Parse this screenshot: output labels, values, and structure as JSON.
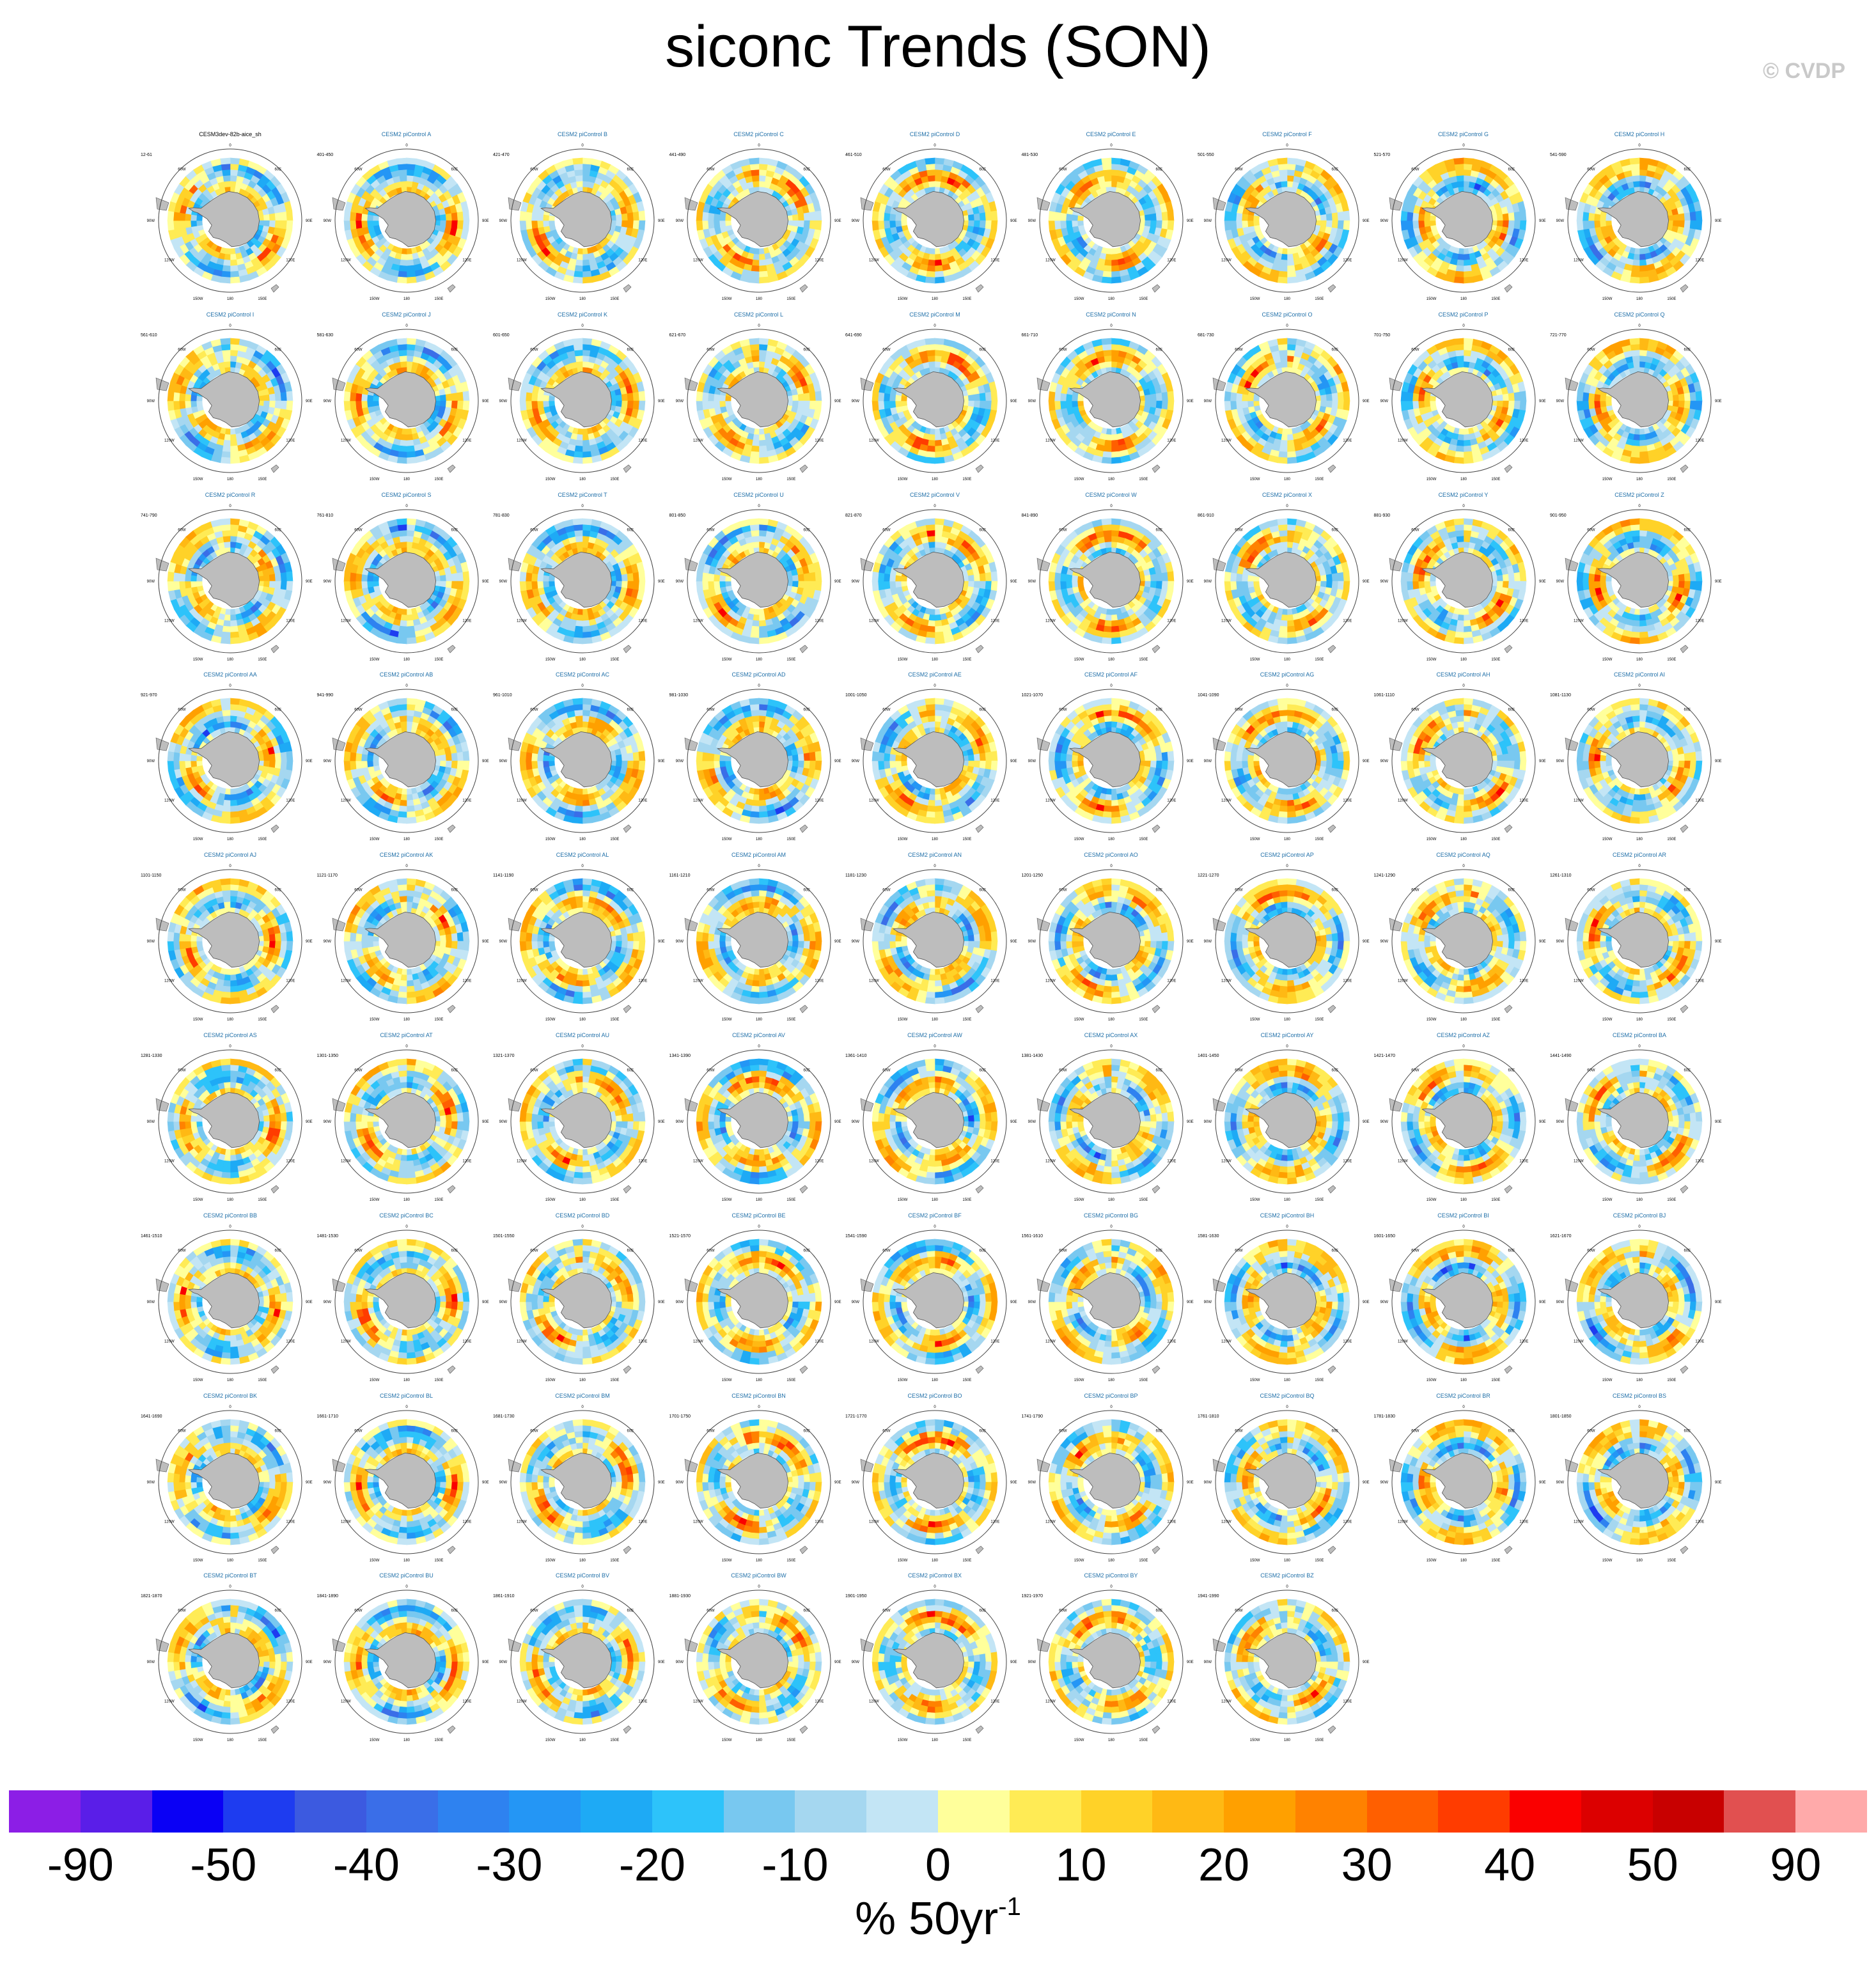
{
  "title": "siconc Trends (SON)",
  "watermark": "© CVDP",
  "units": {
    "base": "% 50yr",
    "exponent": "-1"
  },
  "colorbar": {
    "colors": [
      "#8c1ee6",
      "#5a1ee8",
      "#0a00f5",
      "#1e3cf0",
      "#3c5ae0",
      "#3a6ee8",
      "#2e82f0",
      "#2496f5",
      "#1eaaf5",
      "#2dc3fa",
      "#78c8f0",
      "#a5d7f0",
      "#c3e5f5",
      "#ffff9b",
      "#ffeb55",
      "#ffd228",
      "#ffb914",
      "#ffa000",
      "#ff8200",
      "#ff5f00",
      "#ff3c00",
      "#fa0000",
      "#dc0000",
      "#c80000",
      "#e15050",
      "#ffaaaa"
    ],
    "labels": [
      "-90",
      "-50",
      "-40",
      "-30",
      "-20",
      "-10",
      "0",
      "10",
      "20",
      "30",
      "40",
      "50",
      "90"
    ]
  },
  "map_labels": {
    "top": "0",
    "upper_left": "60W",
    "upper_right": "60E",
    "left": "90W",
    "right": "90E",
    "lower_left": "120W",
    "lower_right": "120E",
    "bottom_left": "150W",
    "bottom": "180",
    "bottom_right": "150E"
  },
  "panels": [
    {
      "title": "CESM3dev-82b-aice_sh",
      "years": "12-61"
    },
    {
      "title": "CESM2 piControl A",
      "years": "401-450"
    },
    {
      "title": "CESM2 piControl B",
      "years": "421-470"
    },
    {
      "title": "CESM2 piControl C",
      "years": "441-490"
    },
    {
      "title": "CESM2 piControl D",
      "years": "461-510"
    },
    {
      "title": "CESM2 piControl E",
      "years": "481-530"
    },
    {
      "title": "CESM2 piControl F",
      "years": "501-550"
    },
    {
      "title": "CESM2 piControl G",
      "years": "521-570"
    },
    {
      "title": "CESM2 piControl H",
      "years": "541-590"
    },
    {
      "title": "CESM2 piControl I",
      "years": "561-610"
    },
    {
      "title": "CESM2 piControl J",
      "years": "581-630"
    },
    {
      "title": "CESM2 piControl K",
      "years": "601-650"
    },
    {
      "title": "CESM2 piControl L",
      "years": "621-670"
    },
    {
      "title": "CESM2 piControl M",
      "years": "641-690"
    },
    {
      "title": "CESM2 piControl N",
      "years": "661-710"
    },
    {
      "title": "CESM2 piControl O",
      "years": "681-730"
    },
    {
      "title": "CESM2 piControl P",
      "years": "701-750"
    },
    {
      "title": "CESM2 piControl Q",
      "years": "721-770"
    },
    {
      "title": "CESM2 piControl R",
      "years": "741-790"
    },
    {
      "title": "CESM2 piControl S",
      "years": "761-810"
    },
    {
      "title": "CESM2 piControl T",
      "years": "781-830"
    },
    {
      "title": "CESM2 piControl U",
      "years": "801-850"
    },
    {
      "title": "CESM2 piControl V",
      "years": "821-870"
    },
    {
      "title": "CESM2 piControl W",
      "years": "841-890"
    },
    {
      "title": "CESM2 piControl X",
      "years": "861-910"
    },
    {
      "title": "CESM2 piControl Y",
      "years": "881-930"
    },
    {
      "title": "CESM2 piControl Z",
      "years": "901-950"
    },
    {
      "title": "CESM2 piControl AA",
      "years": "921-970"
    },
    {
      "title": "CESM2 piControl AB",
      "years": "941-990"
    },
    {
      "title": "CESM2 piControl AC",
      "years": "961-1010"
    },
    {
      "title": "CESM2 piControl AD",
      "years": "981-1030"
    },
    {
      "title": "CESM2 piControl AE",
      "years": "1001-1050"
    },
    {
      "title": "CESM2 piControl AF",
      "years": "1021-1070"
    },
    {
      "title": "CESM2 piControl AG",
      "years": "1041-1090"
    },
    {
      "title": "CESM2 piControl AH",
      "years": "1061-1110"
    },
    {
      "title": "CESM2 piControl AI",
      "years": "1081-1130"
    },
    {
      "title": "CESM2 piControl AJ",
      "years": "1101-1150"
    },
    {
      "title": "CESM2 piControl AK",
      "years": "1121-1170"
    },
    {
      "title": "CESM2 piControl AL",
      "years": "1141-1190"
    },
    {
      "title": "CESM2 piControl AM",
      "years": "1161-1210"
    },
    {
      "title": "CESM2 piControl AN",
      "years": "1181-1230"
    },
    {
      "title": "CESM2 piControl AO",
      "years": "1201-1250"
    },
    {
      "title": "CESM2 piControl AP",
      "years": "1221-1270"
    },
    {
      "title": "CESM2 piControl AQ",
      "years": "1241-1290"
    },
    {
      "title": "CESM2 piControl AR",
      "years": "1261-1310"
    },
    {
      "title": "CESM2 piControl AS",
      "years": "1281-1330"
    },
    {
      "title": "CESM2 piControl AT",
      "years": "1301-1350"
    },
    {
      "title": "CESM2 piControl AU",
      "years": "1321-1370"
    },
    {
      "title": "CESM2 piControl AV",
      "years": "1341-1390"
    },
    {
      "title": "CESM2 piControl AW",
      "years": "1361-1410"
    },
    {
      "title": "CESM2 piControl AX",
      "years": "1381-1430"
    },
    {
      "title": "CESM2 piControl AY",
      "years": "1401-1450"
    },
    {
      "title": "CESM2 piControl AZ",
      "years": "1421-1470"
    },
    {
      "title": "CESM2 piControl BA",
      "years": "1441-1490"
    },
    {
      "title": "CESM2 piControl BB",
      "years": "1461-1510"
    },
    {
      "title": "CESM2 piControl BC",
      "years": "1481-1530"
    },
    {
      "title": "CESM2 piControl BD",
      "years": "1501-1550"
    },
    {
      "title": "CESM2 piControl BE",
      "years": "1521-1570"
    },
    {
      "title": "CESM2 piControl BF",
      "years": "1541-1590"
    },
    {
      "title": "CESM2 piControl BG",
      "years": "1561-1610"
    },
    {
      "title": "CESM2 piControl BH",
      "years": "1581-1630"
    },
    {
      "title": "CESM2 piControl BI",
      "years": "1601-1650"
    },
    {
      "title": "CESM2 piControl BJ",
      "years": "1621-1670"
    },
    {
      "title": "CESM2 piControl BK",
      "years": "1641-1690"
    },
    {
      "title": "CESM2 piControl BL",
      "years": "1661-1710"
    },
    {
      "title": "CESM2 piControl BM",
      "years": "1681-1730"
    },
    {
      "title": "CESM2 piControl BN",
      "years": "1701-1750"
    },
    {
      "title": "CESM2 piControl BO",
      "years": "1721-1770"
    },
    {
      "title": "CESM2 piControl BP",
      "years": "1741-1790"
    },
    {
      "title": "CESM2 piControl BQ",
      "years": "1761-1810"
    },
    {
      "title": "CESM2 piControl BR",
      "years": "1781-1830"
    },
    {
      "title": "CESM2 piControl BS",
      "years": "1801-1850"
    },
    {
      "title": "CESM2 piControl BT",
      "years": "1821-1870"
    },
    {
      "title": "CESM2 piControl BU",
      "years": "1841-1890"
    },
    {
      "title": "CESM2 piControl BV",
      "years": "1861-1910"
    },
    {
      "title": "CESM2 piControl BW",
      "years": "1881-1930"
    },
    {
      "title": "CESM2 piControl BX",
      "years": "1901-1950"
    },
    {
      "title": "CESM2 piControl BY",
      "years": "1921-1970"
    },
    {
      "title": "CESM2 piControl BZ",
      "years": "1941-1990"
    }
  ]
}
